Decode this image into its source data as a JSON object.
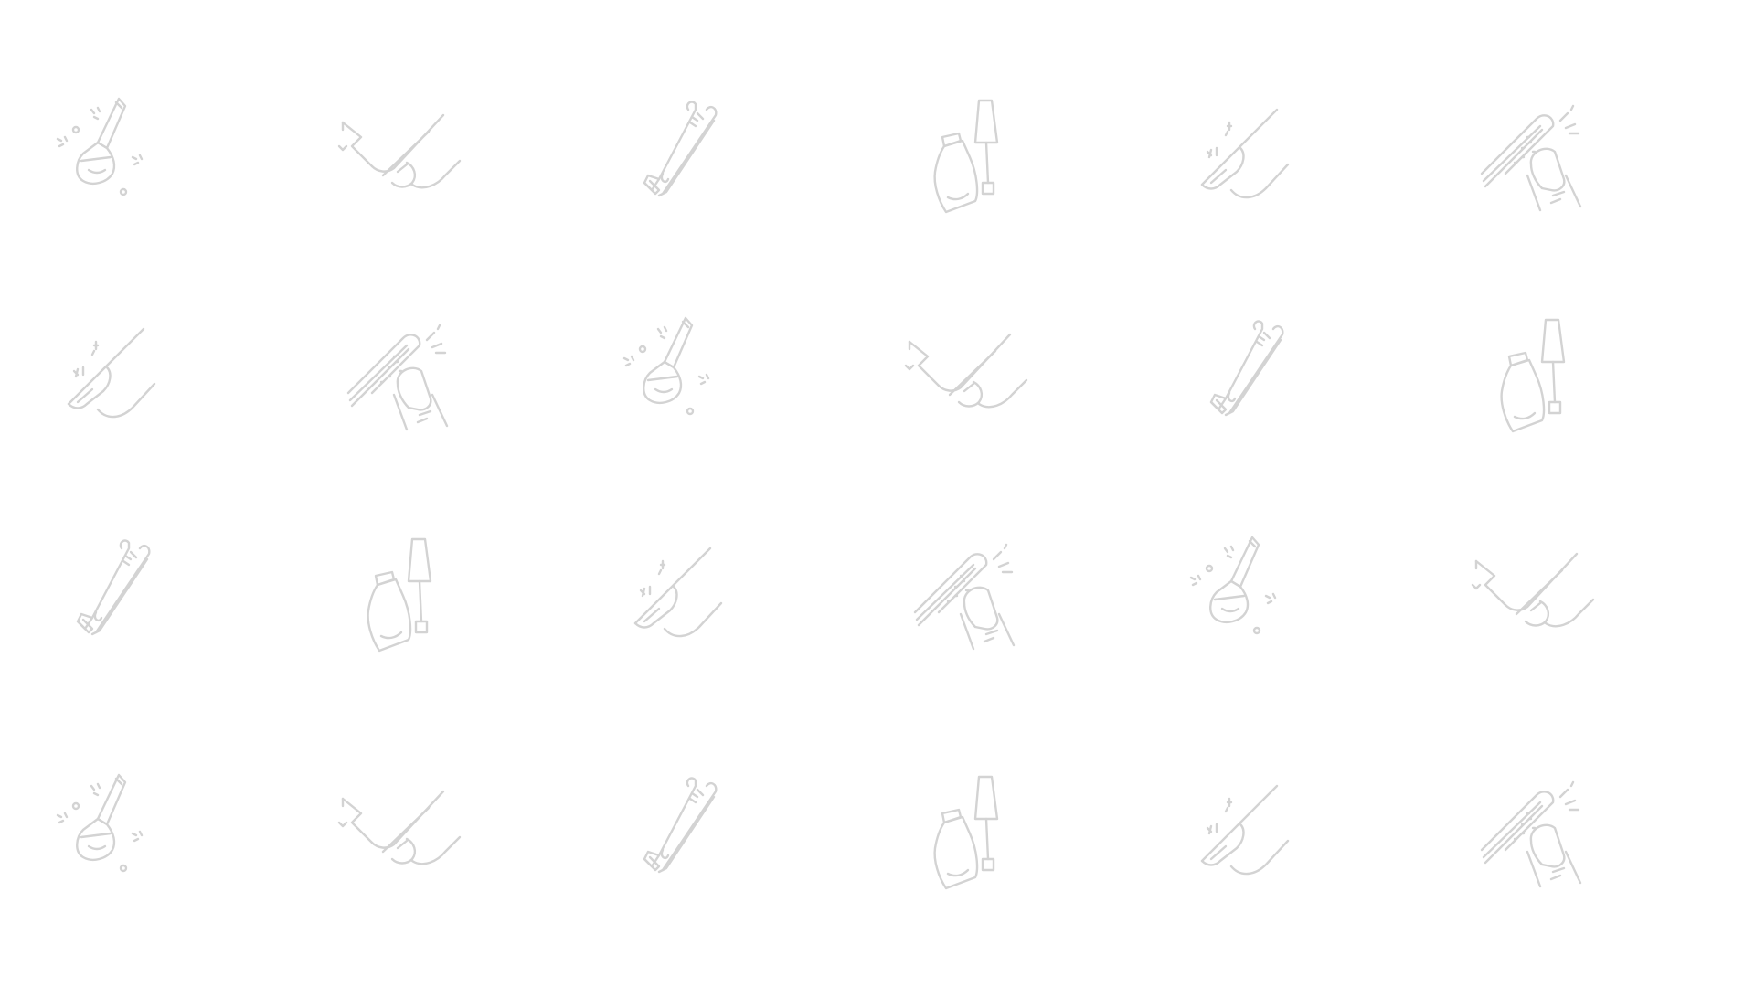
{
  "background_color": "#ffffff",
  "line_color": "#d3d3d3",
  "grid": {
    "rows": [
      [
        "brush-icon",
        "cuticle-pusher-icon",
        "nail-clipper-icon",
        "nail-polish-icon",
        "nail-file-icon",
        "buffer-icon"
      ],
      [
        "nail-file-icon",
        "buffer-icon",
        "brush-icon",
        "cuticle-pusher-icon",
        "nail-clipper-icon",
        "nail-polish-icon"
      ],
      [
        "nail-clipper-icon",
        "nail-polish-icon",
        "nail-file-icon",
        "buffer-icon",
        "brush-icon",
        "cuticle-pusher-icon"
      ],
      [
        "brush-icon",
        "cuticle-pusher-icon",
        "nail-clipper-icon",
        "nail-polish-icon",
        "nail-file-icon",
        "buffer-icon"
      ]
    ]
  }
}
